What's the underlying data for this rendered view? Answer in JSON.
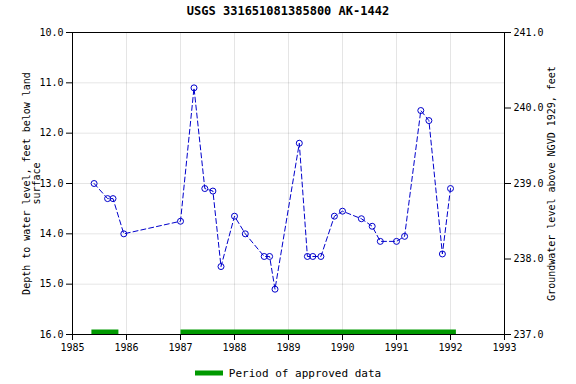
{
  "chart_data": {
    "type": "line",
    "title": "USGS 331651081385800 AK-1442",
    "ylabel": "Depth to water level, feet below land\nsurface",
    "y2label": "Groundwater level above NGVD 1929, feet",
    "x": [
      1985.4,
      1985.65,
      1985.75,
      1985.95,
      1987.0,
      1987.25,
      1987.45,
      1987.6,
      1987.75,
      1988.0,
      1988.2,
      1988.55,
      1988.65,
      1988.75,
      1989.2,
      1989.35,
      1989.45,
      1989.6,
      1989.85,
      1990.0,
      1990.35,
      1990.55,
      1990.7,
      1991.0,
      1991.15,
      1991.45,
      1991.6,
      1991.85,
      1992.0
    ],
    "values": [
      13.0,
      13.3,
      13.3,
      14.0,
      13.75,
      11.1,
      13.1,
      13.15,
      14.65,
      13.65,
      14.0,
      14.45,
      14.45,
      15.1,
      12.2,
      14.45,
      14.45,
      14.45,
      13.65,
      13.55,
      13.7,
      13.85,
      14.15,
      14.15,
      14.05,
      11.55,
      11.75,
      14.4,
      13.1
    ],
    "color": "#0000cc",
    "marker": "circle",
    "line_style": "dashed",
    "xlim": [
      1985,
      1993
    ],
    "xticks": [
      1985,
      1986,
      1987,
      1988,
      1989,
      1990,
      1991,
      1992,
      1993
    ],
    "ylim": [
      16.0,
      10.0
    ],
    "yticks": [
      {
        "value": 10.0,
        "label": "10.0"
      },
      {
        "value": 11.0,
        "label": "11.0"
      },
      {
        "value": 12.0,
        "label": "12.0"
      },
      {
        "value": 13.0,
        "label": "13.0"
      },
      {
        "value": 14.0,
        "label": "14.0"
      },
      {
        "value": 15.0,
        "label": "15.0"
      },
      {
        "value": 16.0,
        "label": "16.0"
      }
    ],
    "y2lim": [
      237.0,
      241.0
    ],
    "y2ticks": [
      {
        "value": 237.0,
        "label": "237.0"
      },
      {
        "value": 238.0,
        "label": "238.0"
      },
      {
        "value": 239.0,
        "label": "239.0"
      },
      {
        "value": 240.0,
        "label": "240.0"
      },
      {
        "value": 241.0,
        "label": "241.0"
      }
    ],
    "grid": true,
    "legend": "bottom",
    "approved_periods": {
      "name": "Period of approved data",
      "color": "#009900",
      "periods": [
        [
          1985.35,
          1985.85
        ],
        [
          1987.0,
          1992.1
        ]
      ]
    }
  }
}
